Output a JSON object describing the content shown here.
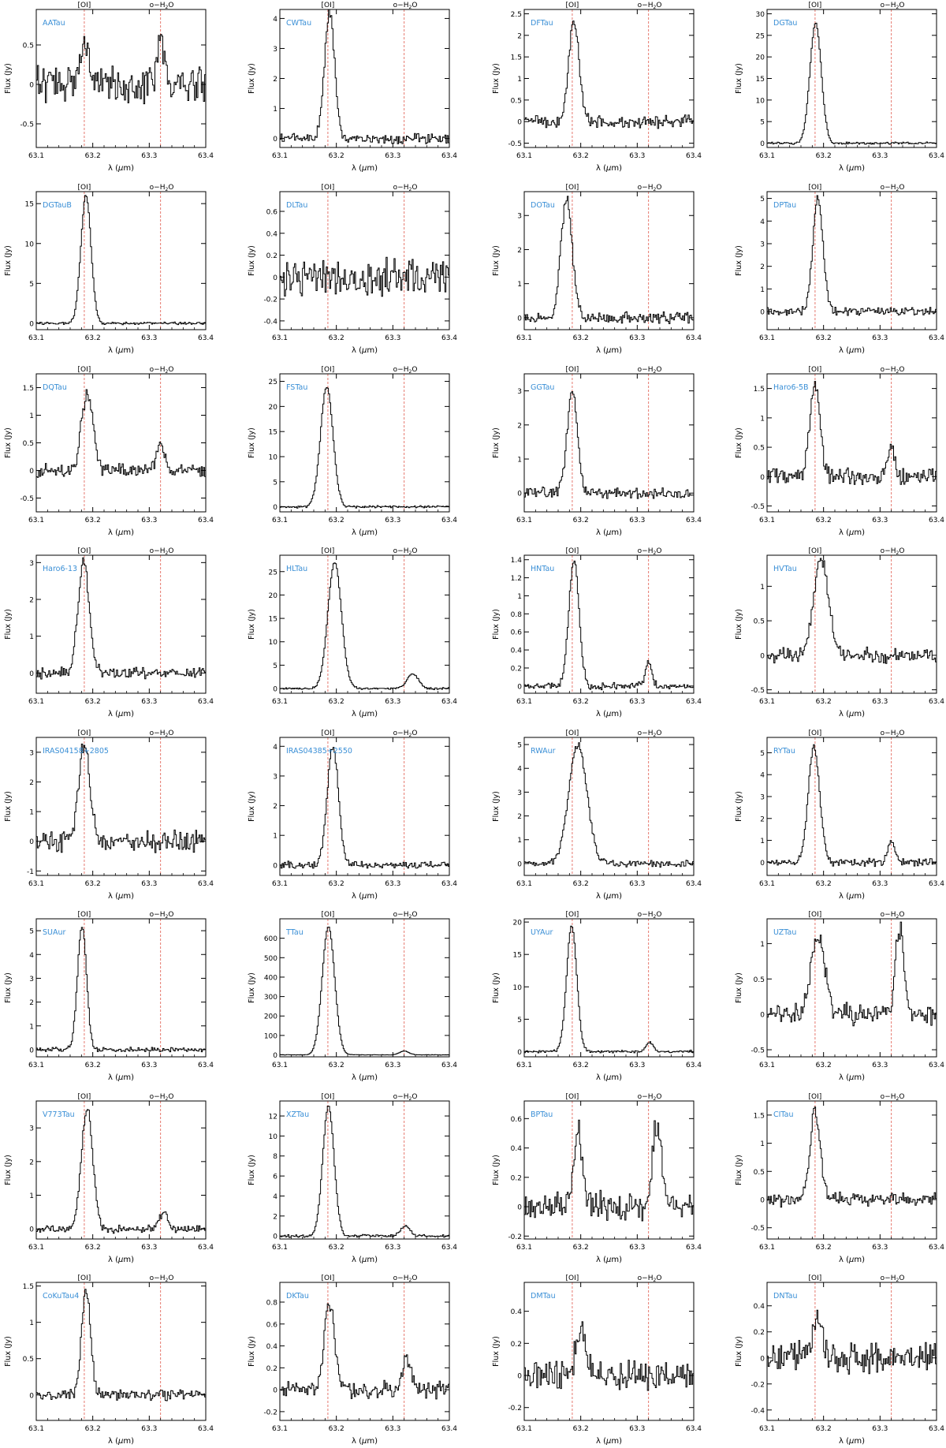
{
  "figure": {
    "line_labels": [
      "[OI]",
      "o−H",
      "2",
      "O"
    ],
    "xlabel_parts": [
      "λ (",
      "μ",
      "m)"
    ],
    "ylabel": "Flux (Jy)",
    "x_tick_labels": [
      "63.1",
      "63.2",
      "63.3",
      "63.4"
    ],
    "colors": {
      "name": "#3a8fd6",
      "marker": "#e36a5f",
      "trace": "#000000"
    }
  },
  "chart_data": [
    {
      "type": "line",
      "name": "AATau",
      "xlim": [
        63.1,
        63.4
      ],
      "ylim": [
        -0.8,
        0.95
      ],
      "yticks": [
        -0.5,
        0,
        0.5
      ],
      "line_markers": [
        63.185,
        63.32
      ],
      "peaks": [
        {
          "x": 63.185,
          "h": 0.5,
          "w": 0.008
        },
        {
          "x": 63.32,
          "h": 0.65,
          "w": 0.006
        }
      ],
      "noise": 0.32,
      "seed": 1
    },
    {
      "type": "line",
      "name": "CWTau",
      "xlim": [
        63.1,
        63.4
      ],
      "ylim": [
        -0.3,
        4.3
      ],
      "yticks": [
        0,
        1,
        2,
        3,
        4
      ],
      "line_markers": [
        63.185,
        63.32
      ],
      "peaks": [
        {
          "x": 63.188,
          "h": 4.2,
          "w": 0.009
        }
      ],
      "noise": 0.26,
      "seed": 2
    },
    {
      "type": "line",
      "name": "DFTau",
      "xlim": [
        63.1,
        63.4
      ],
      "ylim": [
        -0.6,
        2.6
      ],
      "yticks": [
        -0.5,
        0,
        0.5,
        1,
        1.5,
        2,
        2.5
      ],
      "line_markers": [
        63.185,
        63.32
      ],
      "peaks": [
        {
          "x": 63.188,
          "h": 2.3,
          "w": 0.009
        }
      ],
      "noise": 0.22,
      "seed": 3
    },
    {
      "type": "line",
      "name": "DGTau",
      "xlim": [
        63.1,
        63.4
      ],
      "ylim": [
        -1,
        31
      ],
      "yticks": [
        0,
        5,
        10,
        15,
        20,
        25,
        30
      ],
      "line_markers": [
        63.185,
        63.32
      ],
      "peaks": [
        {
          "x": 63.186,
          "h": 28,
          "w": 0.01
        }
      ],
      "noise": 0.4,
      "seed": 4
    },
    {
      "type": "line",
      "name": "DGTauB",
      "xlim": [
        63.1,
        63.4
      ],
      "ylim": [
        -0.8,
        16.5
      ],
      "yticks": [
        0,
        5,
        10,
        15
      ],
      "line_markers": [
        63.185,
        63.32
      ],
      "peaks": [
        {
          "x": 63.188,
          "h": 16,
          "w": 0.009
        }
      ],
      "noise": 0.25,
      "seed": 5
    },
    {
      "type": "line",
      "name": "DLTau",
      "xlim": [
        63.1,
        63.4
      ],
      "ylim": [
        -0.48,
        0.78
      ],
      "yticks": [
        -0.4,
        -0.2,
        0,
        0.2,
        0.4,
        0.6
      ],
      "line_markers": [
        63.185,
        63.32
      ],
      "peaks": [],
      "noise": 0.25,
      "seed": 6
    },
    {
      "type": "line",
      "name": "DOTau",
      "xlim": [
        63.1,
        63.4
      ],
      "ylim": [
        -0.35,
        3.7
      ],
      "yticks": [
        0,
        1,
        2,
        3
      ],
      "line_markers": [
        63.185,
        63.32
      ],
      "peaks": [
        {
          "x": 63.175,
          "h": 3.5,
          "w": 0.01
        }
      ],
      "noise": 0.24,
      "seed": 7
    },
    {
      "type": "line",
      "name": "DPTau",
      "xlim": [
        63.1,
        63.4
      ],
      "ylim": [
        -0.8,
        5.3
      ],
      "yticks": [
        0,
        1,
        2,
        3,
        4,
        5
      ],
      "line_markers": [
        63.185,
        63.32
      ],
      "peaks": [
        {
          "x": 63.19,
          "h": 5,
          "w": 0.009
        }
      ],
      "noise": 0.25,
      "seed": 8
    },
    {
      "type": "line",
      "name": "DQTau",
      "xlim": [
        63.1,
        63.4
      ],
      "ylim": [
        -0.75,
        1.75
      ],
      "yticks": [
        -0.5,
        0,
        0.5,
        1,
        1.5
      ],
      "line_markers": [
        63.185,
        63.32
      ],
      "peaks": [
        {
          "x": 63.19,
          "h": 1.4,
          "w": 0.01
        },
        {
          "x": 63.32,
          "h": 0.5,
          "w": 0.006
        }
      ],
      "noise": 0.2,
      "seed": 9
    },
    {
      "type": "line",
      "name": "FSTau",
      "xlim": [
        63.1,
        63.4
      ],
      "ylim": [
        -1,
        26.5
      ],
      "yticks": [
        0,
        5,
        10,
        15,
        20,
        25
      ],
      "line_markers": [
        63.185,
        63.32
      ],
      "peaks": [
        {
          "x": 63.183,
          "h": 24,
          "w": 0.011
        }
      ],
      "noise": 0.35,
      "seed": 10
    },
    {
      "type": "line",
      "name": "GGTau",
      "xlim": [
        63.1,
        63.4
      ],
      "ylim": [
        -0.55,
        3.5
      ],
      "yticks": [
        0,
        1,
        2,
        3
      ],
      "line_markers": [
        63.185,
        63.32
      ],
      "peaks": [
        {
          "x": 63.185,
          "h": 3,
          "w": 0.009
        }
      ],
      "noise": 0.23,
      "seed": 11
    },
    {
      "type": "line",
      "name": "Haro6-5B",
      "xlim": [
        63.1,
        63.4
      ],
      "ylim": [
        -0.6,
        1.75
      ],
      "yticks": [
        -0.5,
        0,
        0.5,
        1,
        1.5
      ],
      "line_markers": [
        63.185,
        63.32
      ],
      "peaks": [
        {
          "x": 63.185,
          "h": 1.6,
          "w": 0.009
        },
        {
          "x": 63.32,
          "h": 0.55,
          "w": 0.006
        }
      ],
      "noise": 0.22,
      "seed": 12
    },
    {
      "type": "line",
      "name": "Haro6-13",
      "xlim": [
        63.1,
        63.4
      ],
      "ylim": [
        -0.55,
        3.2
      ],
      "yticks": [
        0,
        1,
        2,
        3
      ],
      "line_markers": [
        63.185,
        63.32
      ],
      "peaks": [
        {
          "x": 63.184,
          "h": 3,
          "w": 0.01
        }
      ],
      "noise": 0.23,
      "seed": 13
    },
    {
      "type": "line",
      "name": "HLTau",
      "xlim": [
        63.1,
        63.4
      ],
      "ylim": [
        -1,
        28.5
      ],
      "yticks": [
        0,
        5,
        10,
        15,
        20,
        25
      ],
      "line_markers": [
        63.185,
        63.32
      ],
      "peaks": [
        {
          "x": 63.197,
          "h": 27,
          "w": 0.012
        },
        {
          "x": 63.335,
          "h": 3.2,
          "w": 0.01
        }
      ],
      "noise": 0.3,
      "seed": 14
    },
    {
      "type": "line",
      "name": "HNTau",
      "xlim": [
        63.1,
        63.4
      ],
      "ylim": [
        -0.08,
        1.45
      ],
      "yticks": [
        0,
        0.2,
        0.4,
        0.6,
        0.8,
        1,
        1.2,
        1.4
      ],
      "line_markers": [
        63.185,
        63.32
      ],
      "peaks": [
        {
          "x": 63.188,
          "h": 1.4,
          "w": 0.009
        },
        {
          "x": 63.32,
          "h": 0.25,
          "w": 0.006
        }
      ],
      "noise": 0.06,
      "seed": 15
    },
    {
      "type": "line",
      "name": "HVTau",
      "xlim": [
        63.1,
        63.4
      ],
      "ylim": [
        -0.55,
        1.45
      ],
      "yticks": [
        -0.5,
        0,
        0.5,
        1
      ],
      "line_markers": [
        63.185,
        63.32
      ],
      "peaks": [
        {
          "x": 63.196,
          "h": 1.4,
          "w": 0.013
        }
      ],
      "noise": 0.17,
      "seed": 16
    },
    {
      "type": "line",
      "name": "IRAS04158+2805",
      "xlim": [
        63.1,
        63.4
      ],
      "ylim": [
        -1.15,
        3.5
      ],
      "yticks": [
        -1,
        0,
        1,
        2,
        3
      ],
      "line_markers": [
        63.185,
        63.32
      ],
      "peaks": [
        {
          "x": 63.185,
          "h": 3.3,
          "w": 0.01
        }
      ],
      "noise": 0.55,
      "seed": 17
    },
    {
      "type": "line",
      "name": "IRAS04385+2550",
      "xlim": [
        63.1,
        63.4
      ],
      "ylim": [
        -0.35,
        4.3
      ],
      "yticks": [
        0,
        1,
        2,
        3,
        4
      ],
      "line_markers": [
        63.185,
        63.32
      ],
      "peaks": [
        {
          "x": 63.194,
          "h": 4,
          "w": 0.01
        }
      ],
      "noise": 0.18,
      "seed": 18
    },
    {
      "type": "line",
      "name": "RWAur",
      "xlim": [
        63.1,
        63.4
      ],
      "ylim": [
        -0.5,
        5.3
      ],
      "yticks": [
        0,
        1,
        2,
        3,
        4,
        5
      ],
      "line_markers": [
        63.185,
        63.32
      ],
      "peaks": [
        {
          "x": 63.195,
          "h": 5,
          "w": 0.016
        }
      ],
      "noise": 0.2,
      "seed": 19
    },
    {
      "type": "line",
      "name": "RYTau",
      "xlim": [
        63.1,
        63.4
      ],
      "ylim": [
        -0.6,
        5.7
      ],
      "yticks": [
        0,
        1,
        2,
        3,
        4,
        5
      ],
      "line_markers": [
        63.185,
        63.32
      ],
      "peaks": [
        {
          "x": 63.183,
          "h": 5.3,
          "w": 0.01
        },
        {
          "x": 63.32,
          "h": 1,
          "w": 0.006
        }
      ],
      "noise": 0.25,
      "seed": 20
    },
    {
      "type": "line",
      "name": "SUAur",
      "xlim": [
        63.1,
        63.4
      ],
      "ylim": [
        -0.3,
        5.5
      ],
      "yticks": [
        0,
        1,
        2,
        3,
        4,
        5
      ],
      "line_markers": [
        63.185,
        63.32
      ],
      "peaks": [
        {
          "x": 63.181,
          "h": 5.2,
          "w": 0.008
        }
      ],
      "noise": 0.15,
      "seed": 21
    },
    {
      "type": "line",
      "name": "TTau",
      "xlim": [
        63.1,
        63.4
      ],
      "ylim": [
        -10,
        700
      ],
      "yticks": [
        0,
        100,
        200,
        300,
        400,
        500,
        600
      ],
      "line_markers": [
        63.185,
        63.32
      ],
      "peaks": [
        {
          "x": 63.186,
          "h": 660,
          "w": 0.011
        },
        {
          "x": 63.32,
          "h": 20,
          "w": 0.008
        }
      ],
      "noise": 2,
      "seed": 22
    },
    {
      "type": "line",
      "name": "UYAur",
      "xlim": [
        63.1,
        63.4
      ],
      "ylim": [
        -0.8,
        20.5
      ],
      "yticks": [
        0,
        5,
        10,
        15,
        20
      ],
      "line_markers": [
        63.185,
        63.32
      ],
      "peaks": [
        {
          "x": 63.184,
          "h": 19.5,
          "w": 0.009
        },
        {
          "x": 63.322,
          "h": 1.5,
          "w": 0.006
        }
      ],
      "noise": 0.3,
      "seed": 23
    },
    {
      "type": "line",
      "name": "UZTau",
      "xlim": [
        63.1,
        63.4
      ],
      "ylim": [
        -0.6,
        1.35
      ],
      "yticks": [
        -0.5,
        0,
        0.5,
        1
      ],
      "line_markers": [
        63.185,
        63.32
      ],
      "peaks": [
        {
          "x": 63.19,
          "h": 1.1,
          "w": 0.012
        },
        {
          "x": 63.335,
          "h": 1.2,
          "w": 0.008
        }
      ],
      "noise": 0.22,
      "seed": 24
    },
    {
      "type": "line",
      "name": "V773Tau",
      "xlim": [
        63.1,
        63.4
      ],
      "ylim": [
        -0.3,
        3.8
      ],
      "yticks": [
        0,
        1,
        2,
        3
      ],
      "line_markers": [
        63.185,
        63.32
      ],
      "peaks": [
        {
          "x": 63.19,
          "h": 3.6,
          "w": 0.01
        },
        {
          "x": 63.325,
          "h": 0.5,
          "w": 0.007
        }
      ],
      "noise": 0.17,
      "seed": 25
    },
    {
      "type": "line",
      "name": "XZTau",
      "xlim": [
        63.1,
        63.4
      ],
      "ylim": [
        -0.3,
        13.5
      ],
      "yticks": [
        0,
        2,
        4,
        6,
        8,
        10,
        12
      ],
      "line_markers": [
        63.185,
        63.32
      ],
      "peaks": [
        {
          "x": 63.186,
          "h": 13,
          "w": 0.01
        },
        {
          "x": 63.322,
          "h": 1,
          "w": 0.008
        }
      ],
      "noise": 0.2,
      "seed": 26
    },
    {
      "type": "line",
      "name": "BPTau",
      "xlim": [
        63.1,
        63.4
      ],
      "ylim": [
        -0.22,
        0.72
      ],
      "yticks": [
        -0.2,
        0,
        0.2,
        0.4,
        0.6
      ],
      "line_markers": [
        63.185,
        63.32
      ],
      "peaks": [
        {
          "x": 63.195,
          "h": 0.5,
          "w": 0.008
        },
        {
          "x": 63.335,
          "h": 0.55,
          "w": 0.008
        }
      ],
      "noise": 0.14,
      "seed": 27
    },
    {
      "type": "line",
      "name": "CITau",
      "xlim": [
        63.1,
        63.4
      ],
      "ylim": [
        -0.7,
        1.75
      ],
      "yticks": [
        -0.5,
        0,
        0.5,
        1,
        1.5
      ],
      "line_markers": [
        63.185,
        63.32
      ],
      "peaks": [
        {
          "x": 63.185,
          "h": 1.6,
          "w": 0.009
        }
      ],
      "noise": 0.18,
      "seed": 28
    },
    {
      "type": "line",
      "name": "CoKuTau4",
      "xlim": [
        63.1,
        63.4
      ],
      "ylim": [
        -0.35,
        1.55
      ],
      "yticks": [
        0,
        0.5,
        1,
        1.5
      ],
      "line_markers": [
        63.185,
        63.32
      ],
      "peaks": [
        {
          "x": 63.188,
          "h": 1.45,
          "w": 0.008
        }
      ],
      "noise": 0.12,
      "seed": 29
    },
    {
      "type": "line",
      "name": "DKTau",
      "xlim": [
        63.1,
        63.4
      ],
      "ylim": [
        -0.28,
        0.98
      ],
      "yticks": [
        -0.2,
        0,
        0.2,
        0.4,
        0.6,
        0.8
      ],
      "line_markers": [
        63.185,
        63.32
      ],
      "peaks": [
        {
          "x": 63.188,
          "h": 0.8,
          "w": 0.009
        },
        {
          "x": 63.325,
          "h": 0.3,
          "w": 0.007
        }
      ],
      "noise": 0.12,
      "seed": 30
    },
    {
      "type": "line",
      "name": "DMTau",
      "xlim": [
        63.1,
        63.4
      ],
      "ylim": [
        -0.28,
        0.58
      ],
      "yticks": [
        -0.2,
        0,
        0.2,
        0.4
      ],
      "line_markers": [
        63.185,
        63.32
      ],
      "peaks": [
        {
          "x": 63.2,
          "h": 0.3,
          "w": 0.008
        }
      ],
      "noise": 0.14,
      "seed": 31
    },
    {
      "type": "line",
      "name": "DNTau",
      "xlim": [
        63.1,
        63.4
      ],
      "ylim": [
        -0.48,
        0.58
      ],
      "yticks": [
        -0.4,
        -0.2,
        0,
        0.2,
        0.4
      ],
      "line_markers": [
        63.185,
        63.32
      ],
      "peaks": [
        {
          "x": 63.19,
          "h": 0.3,
          "w": 0.008
        }
      ],
      "noise": 0.17,
      "seed": 32
    }
  ]
}
